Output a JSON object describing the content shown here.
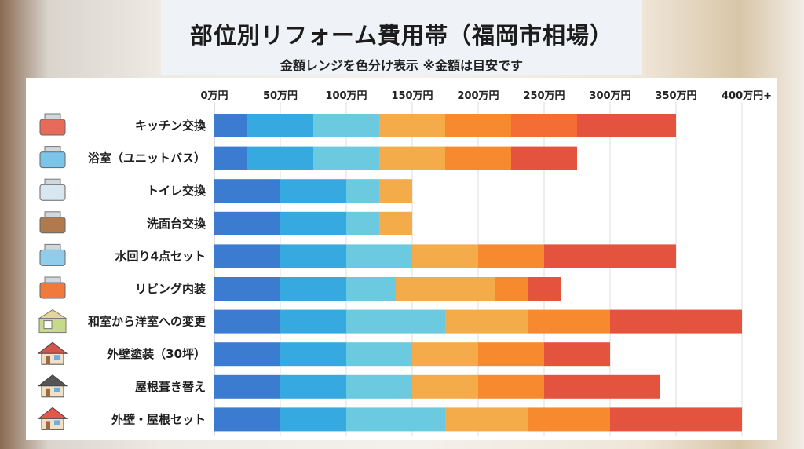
{
  "header": {
    "title": "部位別リフォーム費用帯（福岡市相場）",
    "subtitle": "金額レンジを色分け表示 ※金額は目安です"
  },
  "chart_data": {
    "type": "bar",
    "orientation": "horizontal-stacked-ranges",
    "title": "部位別リフォーム費用帯（福岡市相場）",
    "subtitle": "金額レンジを色分け表示 ※金額は目安です",
    "unit": "万円",
    "xlim": [
      0,
      400
    ],
    "x_ticks": [
      "0万円",
      "50万円",
      "100万円",
      "150万円",
      "200万円",
      "250万円",
      "300万円",
      "350万円",
      "400万円+"
    ],
    "grid": true,
    "colors": {
      "dark_blue": "#3b7bd0",
      "blue": "#36a9e0",
      "light_blue": "#6bc9e0",
      "light_orange": "#f4ac4b",
      "orange": "#f7892f",
      "deep_orange": "#f36d34",
      "red": "#e4533d"
    },
    "rows": [
      {
        "label": "キッチン交換",
        "icon": "kitchen-icon",
        "breaks": [
          0,
          25,
          75,
          125,
          175,
          225,
          275,
          350
        ],
        "colors": [
          "dark_blue",
          "blue",
          "light_blue",
          "light_orange",
          "orange",
          "deep_orange",
          "red"
        ]
      },
      {
        "label": "浴室（ユニットバス）",
        "icon": "bathtub-icon",
        "breaks": [
          0,
          25,
          75,
          125,
          175,
          225,
          275
        ],
        "colors": [
          "dark_blue",
          "blue",
          "light_blue",
          "light_orange",
          "orange",
          "red"
        ]
      },
      {
        "label": "トイレ交換",
        "icon": "toilet-icon",
        "breaks": [
          0,
          50,
          100,
          125,
          150
        ],
        "colors": [
          "dark_blue",
          "blue",
          "light_blue",
          "light_orange"
        ]
      },
      {
        "label": "洗面台交換",
        "icon": "washbasin-icon",
        "breaks": [
          0,
          50,
          100,
          125,
          150
        ],
        "colors": [
          "dark_blue",
          "blue",
          "light_blue",
          "light_orange"
        ]
      },
      {
        "label": "水回り4点セット",
        "icon": "water-set-icon",
        "breaks": [
          0,
          50,
          100,
          150,
          200,
          250,
          350
        ],
        "colors": [
          "dark_blue",
          "blue",
          "light_blue",
          "light_orange",
          "orange",
          "red"
        ]
      },
      {
        "label": "リビング内装",
        "icon": "sofa-icon",
        "breaks": [
          0,
          50,
          100,
          137.5,
          212.5,
          237.5,
          262.5
        ],
        "colors": [
          "dark_blue",
          "blue",
          "light_blue",
          "light_orange",
          "orange",
          "red"
        ]
      },
      {
        "label": "和室から洋室への変更",
        "icon": "room-icon",
        "breaks": [
          0,
          50,
          100,
          175,
          237.5,
          300,
          400
        ],
        "colors": [
          "dark_blue",
          "blue",
          "light_blue",
          "light_orange",
          "orange",
          "red"
        ]
      },
      {
        "label": "外壁塗装（30坪）",
        "icon": "house-icon",
        "breaks": [
          0,
          50,
          100,
          150,
          200,
          250,
          300
        ],
        "colors": [
          "dark_blue",
          "blue",
          "light_blue",
          "light_orange",
          "orange",
          "red"
        ]
      },
      {
        "label": "屋根葺き替え",
        "icon": "roof-house-icon",
        "breaks": [
          0,
          50,
          100,
          150,
          200,
          250,
          337.5
        ],
        "colors": [
          "dark_blue",
          "blue",
          "light_blue",
          "light_orange",
          "orange",
          "red"
        ]
      },
      {
        "label": "外壁・屋根セット",
        "icon": "red-roof-house-icon",
        "breaks": [
          0,
          50,
          100,
          175,
          237.5,
          300,
          400
        ],
        "colors": [
          "dark_blue",
          "blue",
          "light_blue",
          "light_orange",
          "orange",
          "red"
        ]
      }
    ]
  }
}
